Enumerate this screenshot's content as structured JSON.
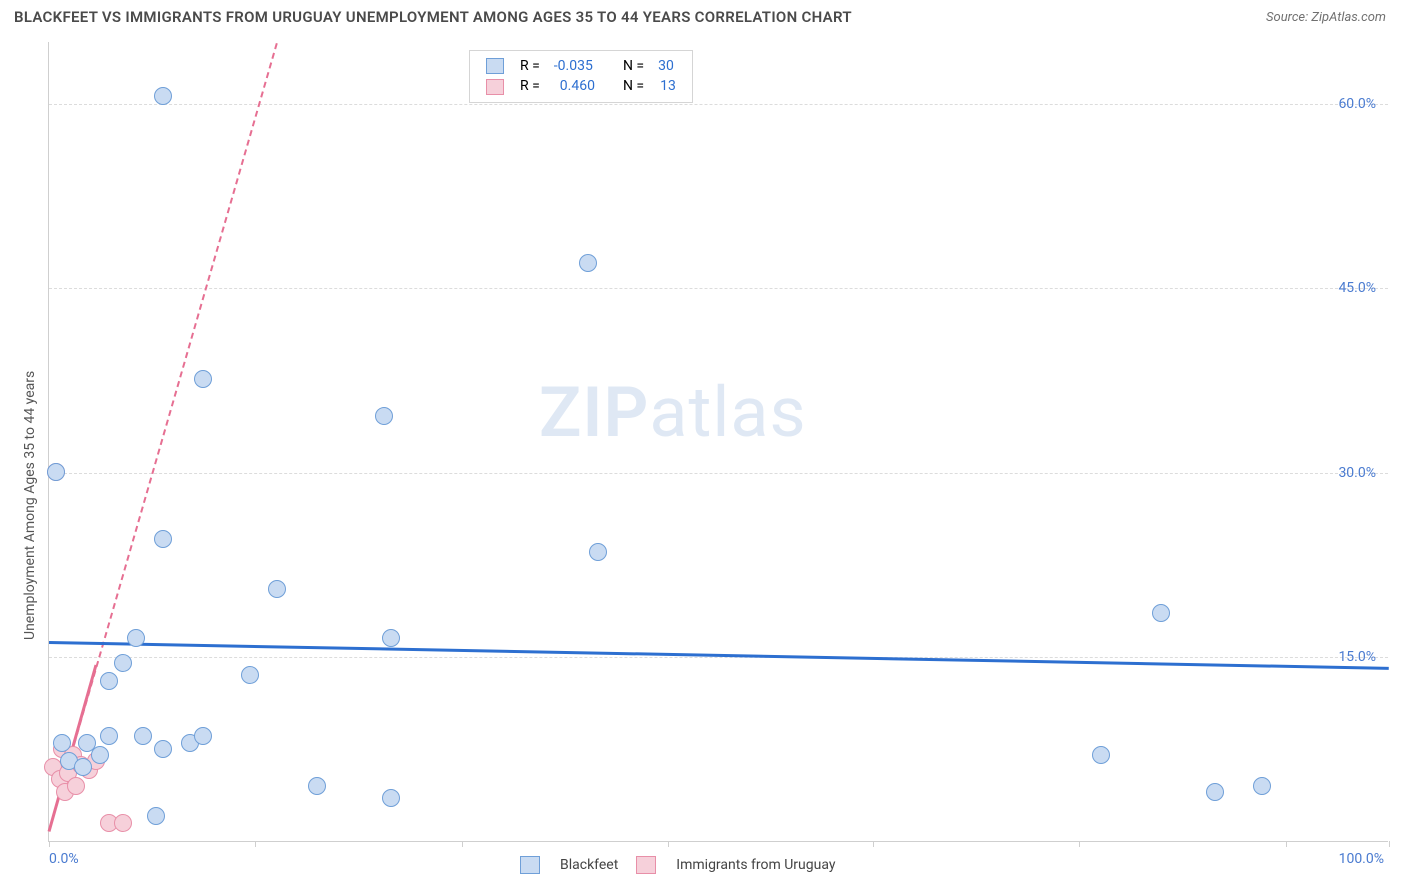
{
  "title": "BLACKFEET VS IMMIGRANTS FROM URUGUAY UNEMPLOYMENT AMONG AGES 35 TO 44 YEARS CORRELATION CHART",
  "source": "Source: ZipAtlas.com",
  "y_axis_label": "Unemployment Among Ages 35 to 44 years",
  "watermark": {
    "bold": "ZIP",
    "rest": "atlas",
    "color": "#dfe8f4"
  },
  "chart": {
    "type": "scatter",
    "background_color": "#ffffff",
    "grid_color": "#dcdcdc",
    "axis_color": "#cfcfcf",
    "tick_label_color": "#4a7bd0",
    "axis_label_color": "#555555",
    "xlim": [
      0,
      100
    ],
    "ylim": [
      0,
      65
    ],
    "x_ticks": [
      0,
      15.4,
      30.8,
      46.2,
      61.5,
      76.9,
      92.3,
      100
    ],
    "x_tick_labels": {
      "0": "0.0%",
      "100": "100.0%"
    },
    "y_ticks": [
      15,
      30,
      45,
      60
    ],
    "y_tick_labels": {
      "15": "15.0%",
      "30": "30.0%",
      "45": "45.0%",
      "60": "60.0%"
    },
    "marker_radius": 9,
    "marker_stroke_width": 1
  },
  "series": [
    {
      "key": "blackfeet",
      "label": "Blackfeet",
      "fill": "#c9dbf2",
      "stroke": "#6f9fd8",
      "R": "-0.035",
      "N": "30",
      "trend": {
        "color": "#2d6fd0",
        "width": 3,
        "dash": "solid",
        "x1": 0,
        "y1": 16.3,
        "x2": 100,
        "y2": 14.2
      },
      "points": [
        [
          8.5,
          60.5
        ],
        [
          40.2,
          47.0
        ],
        [
          11.5,
          37.5
        ],
        [
          25.0,
          34.5
        ],
        [
          0.5,
          30.0
        ],
        [
          8.5,
          24.5
        ],
        [
          17.0,
          20.5
        ],
        [
          41.0,
          23.5
        ],
        [
          83.0,
          18.5
        ],
        [
          6.5,
          16.5
        ],
        [
          25.5,
          16.5
        ],
        [
          5.5,
          14.5
        ],
        [
          4.5,
          13.0
        ],
        [
          15.0,
          13.5
        ],
        [
          1.0,
          8.0
        ],
        [
          2.8,
          8.0
        ],
        [
          4.5,
          8.5
        ],
        [
          7.0,
          8.5
        ],
        [
          8.5,
          7.5
        ],
        [
          10.5,
          8.0
        ],
        [
          11.5,
          8.5
        ],
        [
          78.5,
          7.0
        ],
        [
          20.0,
          4.5
        ],
        [
          25.5,
          3.5
        ],
        [
          8.0,
          2.0
        ],
        [
          87.0,
          4.0
        ],
        [
          90.5,
          4.5
        ],
        [
          1.5,
          6.5
        ],
        [
          2.5,
          6.0
        ],
        [
          3.8,
          7.0
        ]
      ]
    },
    {
      "key": "uruguay",
      "label": "Immigrants from Uruguay",
      "fill": "#f6d0da",
      "stroke": "#e88fa8",
      "R": "0.460",
      "N": "13",
      "trend": {
        "color": "#e66f92",
        "width": 2,
        "dash": "dashed",
        "x1": 0,
        "y1": 1.0,
        "x2": 17,
        "y2": 65
      },
      "trend_solid": {
        "color": "#e66f92",
        "width": 3,
        "x1": 0,
        "y1": 1.0,
        "x2": 3.5,
        "y2": 14.5
      },
      "points": [
        [
          0.5,
          30.0
        ],
        [
          0.3,
          6.0
        ],
        [
          0.8,
          5.0
        ],
        [
          1.4,
          5.5
        ],
        [
          1.0,
          7.5
        ],
        [
          1.8,
          7.0
        ],
        [
          2.4,
          6.2
        ],
        [
          1.2,
          4.0
        ],
        [
          2.0,
          4.5
        ],
        [
          3.0,
          5.8
        ],
        [
          3.5,
          6.5
        ],
        [
          4.5,
          1.5
        ],
        [
          5.5,
          1.5
        ]
      ]
    }
  ],
  "legend_top": {
    "R_label": "R =",
    "N_label": "N =",
    "value_color": "#2d6fd0"
  },
  "legend_bottom": {
    "items": [
      "Blackfeet",
      "Immigrants from Uruguay"
    ]
  }
}
